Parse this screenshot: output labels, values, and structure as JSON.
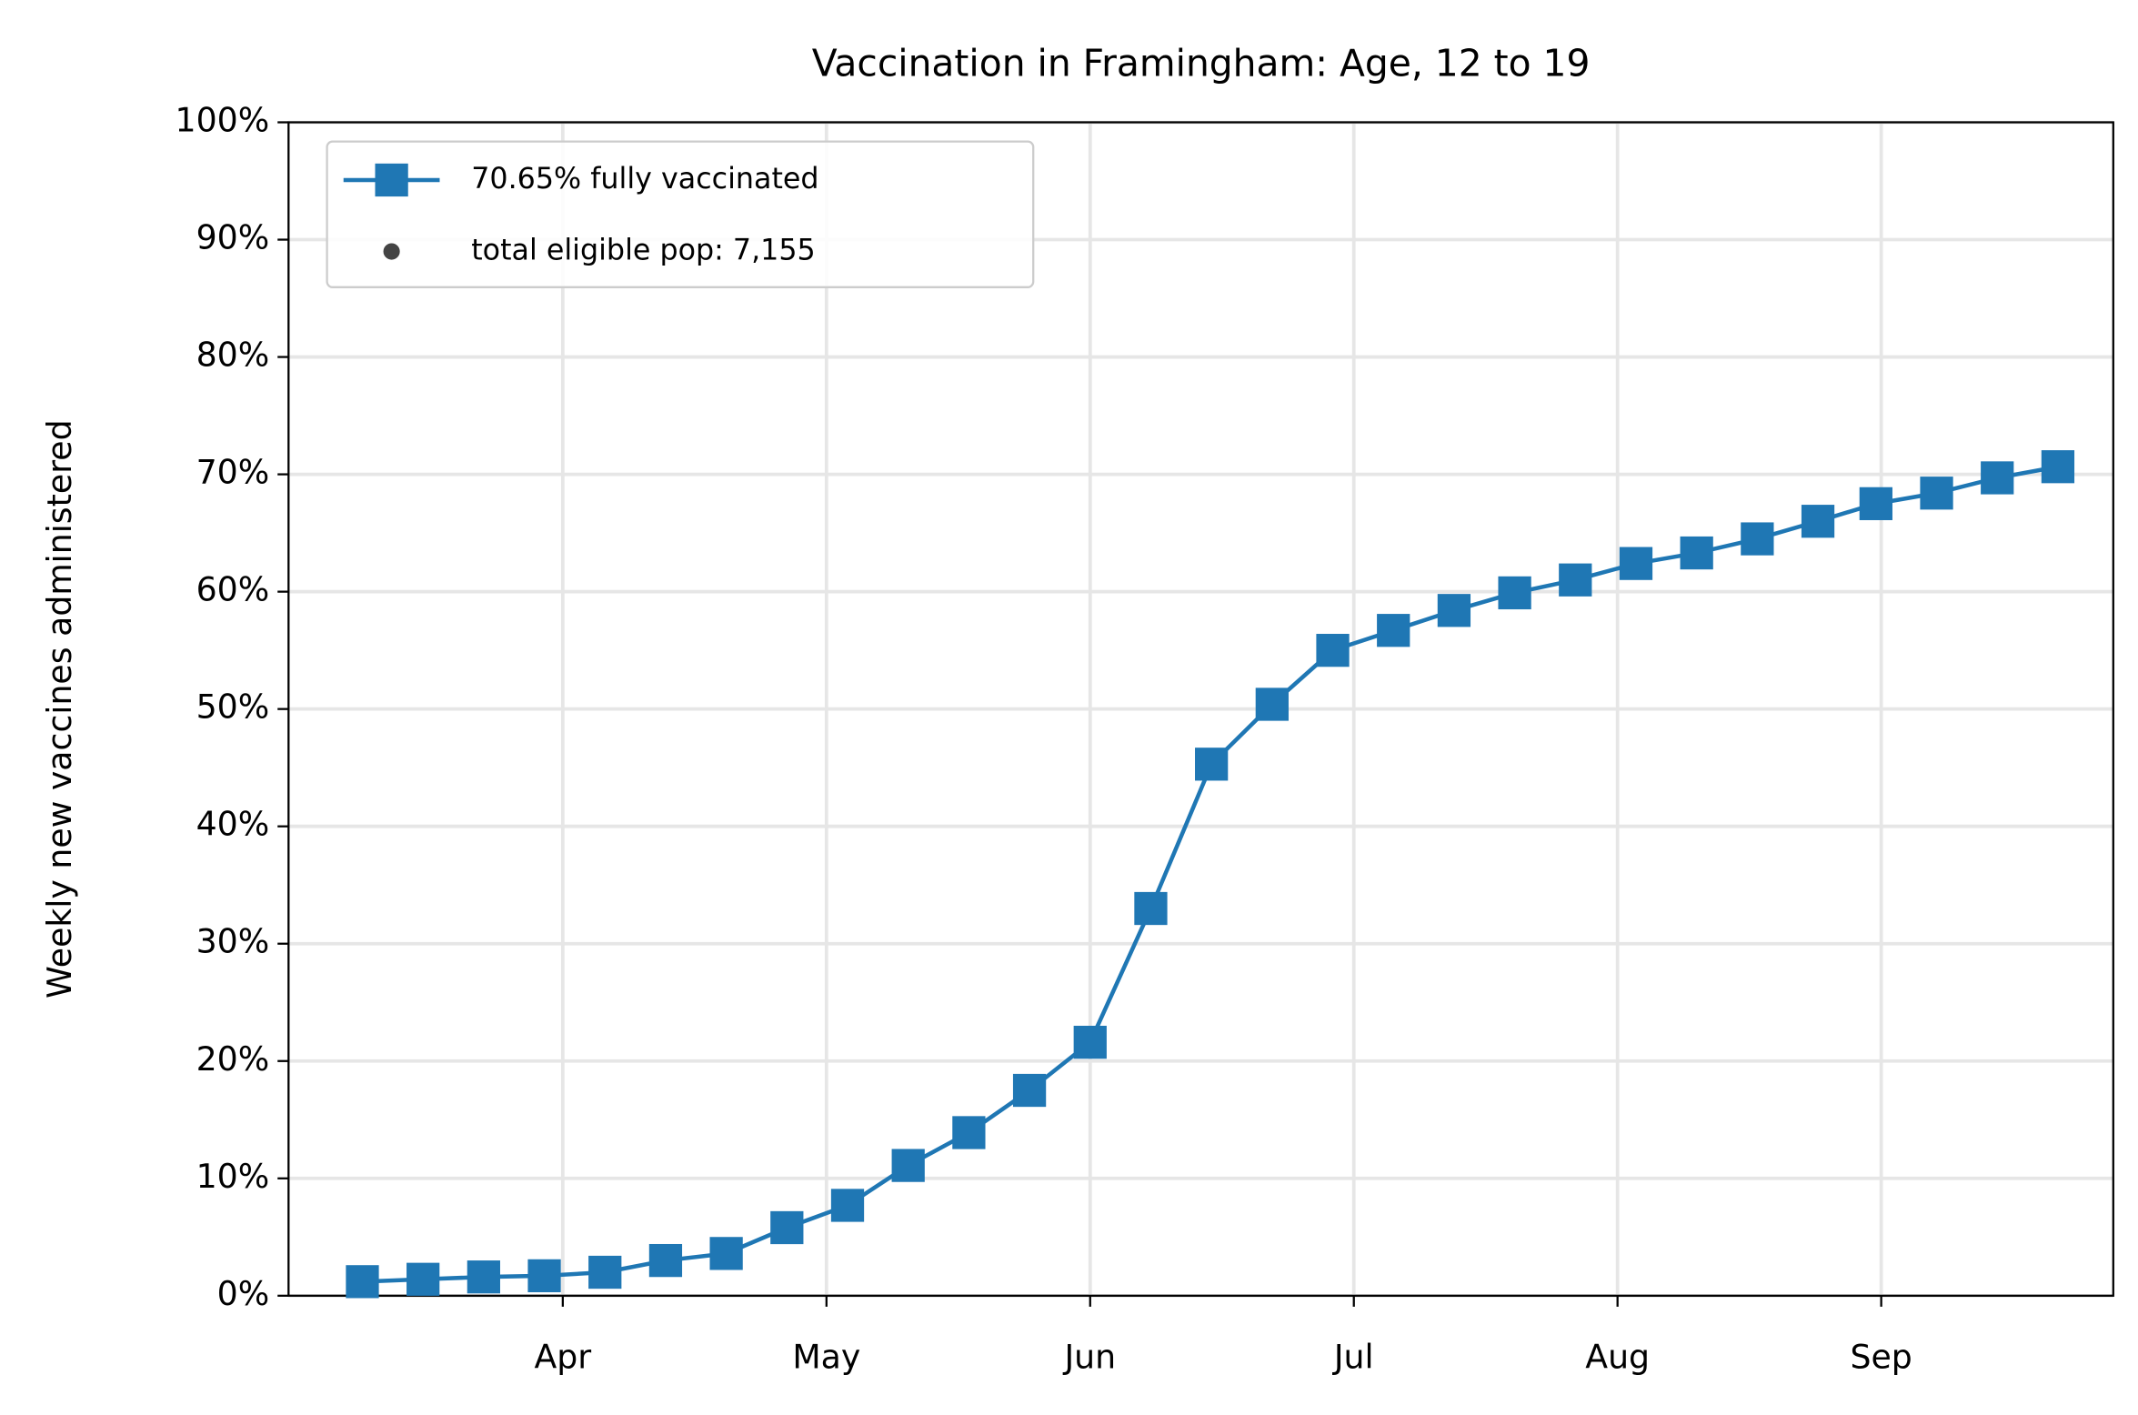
{
  "chart_data": {
    "type": "line",
    "title": "Vaccination in Framingham: Age, 12 to 19",
    "ylabel": "Weekly new vaccines administered",
    "x": [
      3.24,
      3.47,
      3.7,
      3.93,
      4.16,
      4.39,
      4.62,
      4.85,
      5.08,
      5.31,
      5.54,
      5.77,
      6.0,
      6.23,
      6.46,
      6.69,
      6.92,
      7.15,
      7.38,
      7.61,
      7.84,
      8.07,
      8.3,
      8.53,
      8.76,
      8.98,
      9.21,
      9.44,
      9.67
    ],
    "series": [
      {
        "name": "70.65% fully vaccinated",
        "color": "#1f77b4",
        "values": [
          1.2,
          1.4,
          1.6,
          1.7,
          2.0,
          3.0,
          3.6,
          5.8,
          7.7,
          11.1,
          13.9,
          17.5,
          21.6,
          33.0,
          45.3,
          50.4,
          55.0,
          56.7,
          58.4,
          59.9,
          61.0,
          62.4,
          63.3,
          64.5,
          66.0,
          67.5,
          68.4,
          69.7,
          70.65
        ]
      }
    ],
    "legend_extra": {
      "label": "total eligible pop: 7,155",
      "color": "#444444"
    },
    "xlim": [
      2.96,
      9.88
    ],
    "xticks": [
      {
        "value": 4,
        "label": "Apr"
      },
      {
        "value": 5,
        "label": "May"
      },
      {
        "value": 6,
        "label": "Jun"
      },
      {
        "value": 7,
        "label": "Jul"
      },
      {
        "value": 8,
        "label": "Aug"
      },
      {
        "value": 9,
        "label": "Sep"
      }
    ],
    "ylim": [
      0,
      100
    ],
    "yticks": [
      {
        "value": 0,
        "label": "0%"
      },
      {
        "value": 10,
        "label": "10%"
      },
      {
        "value": 20,
        "label": "20%"
      },
      {
        "value": 30,
        "label": "30%"
      },
      {
        "value": 40,
        "label": "40%"
      },
      {
        "value": 50,
        "label": "50%"
      },
      {
        "value": 60,
        "label": "60%"
      },
      {
        "value": 70,
        "label": "70%"
      },
      {
        "value": 80,
        "label": "80%"
      },
      {
        "value": 90,
        "label": "90%"
      },
      {
        "value": 100,
        "label": "100%"
      }
    ],
    "grid": true,
    "legend_position": "upper left"
  }
}
